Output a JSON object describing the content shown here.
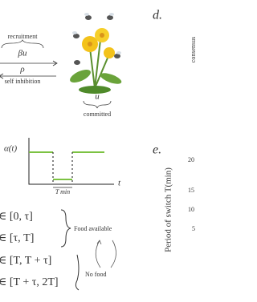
{
  "panel_c": {
    "recruitment": "recruitment",
    "recruitment_rate": "βu",
    "inhibition_rate": "ρ",
    "self_inhibition": "self inhibition",
    "state": "u",
    "committed": "committed"
  },
  "panel_d": {
    "label": "d.",
    "y_label": "consensus"
  },
  "signal": {
    "y_label": "α(t)",
    "x_label": "t",
    "duration": "T min"
  },
  "panel_e": {
    "label": "e.",
    "y_label": "Period of switch T(min)",
    "yticks": [
      "20",
      "15",
      "10",
      "5"
    ]
  },
  "intervals": {
    "rows": [
      "∈ [0, τ]",
      "∈ [τ, T]",
      "∈ [T, T + τ]",
      "∈ [T + τ, 2T]"
    ],
    "food_available": "Food available",
    "no_food": "No food"
  }
}
